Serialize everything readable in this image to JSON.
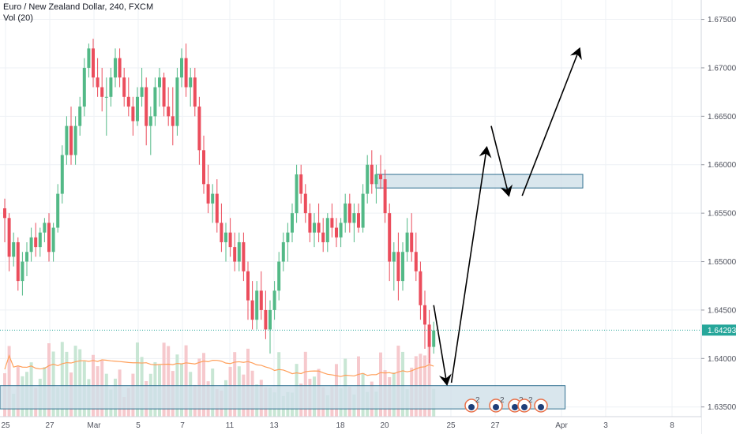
{
  "legend": {
    "symbol_line": "Euro / New Zealand Dollar, 240, FXCM",
    "volume_line": "Vol (20)"
  },
  "colors": {
    "up": "#53b987",
    "down": "#eb4d5c",
    "vol_up": "#c8e6d4",
    "vol_down": "#f6c9cd",
    "vol_ma": "#ff9f5a",
    "zone_fill": "#cfe0e8",
    "zone_stroke": "#2f6f8f",
    "price_line": "#26a69a",
    "grid": "#eef1f5",
    "arrow": "#000000"
  },
  "chart_data": {
    "type": "candlestick",
    "title": "Euro / New Zealand Dollar, 240, FXCM",
    "y_ticks": [
      "1.67500",
      "1.67000",
      "1.66500",
      "1.66000",
      "1.65500",
      "1.65000",
      "1.64500",
      "1.64000",
      "1.63500"
    ],
    "x_ticks": [
      "25",
      "27",
      "Mar",
      "5",
      "7",
      "11",
      "13",
      "18",
      "20",
      "25",
      "27",
      "Apr",
      "3",
      "8"
    ],
    "ylim": [
      1.634,
      1.677
    ],
    "last_price": "1.64293",
    "grid": true,
    "volume_indicator": "Vol (20)",
    "candles": [
      [
        1.6555,
        1.6565,
        1.652,
        1.6545
      ],
      [
        1.6545,
        1.655,
        1.649,
        1.6505
      ],
      [
        1.6505,
        1.653,
        1.6495,
        1.652
      ],
      [
        1.652,
        1.6525,
        1.647,
        1.648
      ],
      [
        1.648,
        1.651,
        1.6465,
        1.65
      ],
      [
        1.65,
        1.652,
        1.6485,
        1.651
      ],
      [
        1.651,
        1.6535,
        1.65,
        1.6525
      ],
      [
        1.6525,
        1.654,
        1.6505,
        1.6515
      ],
      [
        1.6515,
        1.6535,
        1.6505,
        1.653
      ],
      [
        1.653,
        1.6545,
        1.652,
        1.654
      ],
      [
        1.654,
        1.655,
        1.65,
        1.651
      ],
      [
        1.651,
        1.654,
        1.65,
        1.6535
      ],
      [
        1.6535,
        1.658,
        1.653,
        1.657
      ],
      [
        1.657,
        1.662,
        1.656,
        1.661
      ],
      [
        1.661,
        1.665,
        1.66,
        1.664
      ],
      [
        1.664,
        1.666,
        1.66,
        1.661
      ],
      [
        1.661,
        1.665,
        1.66,
        1.664
      ],
      [
        1.664,
        1.667,
        1.663,
        1.666
      ],
      [
        1.666,
        1.671,
        1.665,
        1.67
      ],
      [
        1.67,
        1.6725,
        1.669,
        1.672
      ],
      [
        1.672,
        1.673,
        1.668,
        1.669
      ],
      [
        1.669,
        1.671,
        1.667,
        1.668
      ],
      [
        1.668,
        1.67,
        1.6655,
        1.667
      ],
      [
        1.667,
        1.669,
        1.663,
        1.667
      ],
      [
        1.667,
        1.67,
        1.666,
        1.669
      ],
      [
        1.669,
        1.672,
        1.668,
        1.671
      ],
      [
        1.671,
        1.672,
        1.668,
        1.669
      ],
      [
        1.669,
        1.67,
        1.666,
        1.667
      ],
      [
        1.667,
        1.669,
        1.665,
        1.666
      ],
      [
        1.666,
        1.667,
        1.663,
        1.6645
      ],
      [
        1.6645,
        1.668,
        1.664,
        1.667
      ],
      [
        1.667,
        1.67,
        1.666,
        1.668
      ],
      [
        1.668,
        1.669,
        1.662,
        1.664
      ],
      [
        1.664,
        1.666,
        1.661,
        1.665
      ],
      [
        1.665,
        1.669,
        1.664,
        1.668
      ],
      [
        1.668,
        1.67,
        1.666,
        1.669
      ],
      [
        1.669,
        1.6695,
        1.665,
        1.666
      ],
      [
        1.666,
        1.668,
        1.664,
        1.665
      ],
      [
        1.665,
        1.668,
        1.662,
        1.664
      ],
      [
        1.664,
        1.67,
        1.663,
        1.669
      ],
      [
        1.669,
        1.672,
        1.668,
        1.671
      ],
      [
        1.671,
        1.6725,
        1.667,
        1.668
      ],
      [
        1.668,
        1.67,
        1.666,
        1.669
      ],
      [
        1.669,
        1.67,
        1.665,
        1.666
      ],
      [
        1.666,
        1.667,
        1.66,
        1.6615
      ],
      [
        1.6615,
        1.663,
        1.657,
        1.658
      ],
      [
        1.658,
        1.66,
        1.655,
        1.656
      ],
      [
        1.656,
        1.658,
        1.654,
        1.657
      ],
      [
        1.657,
        1.6585,
        1.653,
        1.654
      ],
      [
        1.654,
        1.656,
        1.651,
        1.652
      ],
      [
        1.652,
        1.654,
        1.65,
        1.653
      ],
      [
        1.653,
        1.6545,
        1.6505,
        1.6515
      ],
      [
        1.6515,
        1.653,
        1.649,
        1.65
      ],
      [
        1.65,
        1.653,
        1.649,
        1.652
      ],
      [
        1.652,
        1.653,
        1.648,
        1.649
      ],
      [
        1.649,
        1.65,
        1.644,
        1.646
      ],
      [
        1.646,
        1.648,
        1.643,
        1.644
      ],
      [
        1.644,
        1.648,
        1.643,
        1.647
      ],
      [
        1.647,
        1.649,
        1.644,
        1.645
      ],
      [
        1.645,
        1.647,
        1.642,
        1.643
      ],
      [
        1.643,
        1.646,
        1.6405,
        1.645
      ],
      [
        1.645,
        1.648,
        1.644,
        1.647
      ],
      [
        1.647,
        1.651,
        1.646,
        1.65
      ],
      [
        1.65,
        1.653,
        1.649,
        1.652
      ],
      [
        1.652,
        1.654,
        1.65,
        1.653
      ],
      [
        1.653,
        1.656,
        1.652,
        1.655
      ],
      [
        1.655,
        1.66,
        1.654,
        1.659
      ],
      [
        1.659,
        1.66,
        1.656,
        1.657
      ],
      [
        1.657,
        1.658,
        1.654,
        1.655
      ],
      [
        1.655,
        1.656,
        1.652,
        1.653
      ],
      [
        1.653,
        1.655,
        1.6515,
        1.654
      ],
      [
        1.654,
        1.656,
        1.652,
        1.653
      ],
      [
        1.653,
        1.6545,
        1.651,
        1.652
      ],
      [
        1.652,
        1.655,
        1.651,
        1.6545
      ],
      [
        1.6545,
        1.656,
        1.6525,
        1.6535
      ],
      [
        1.6535,
        1.6545,
        1.6515,
        1.6525
      ],
      [
        1.6525,
        1.6545,
        1.6515,
        1.654
      ],
      [
        1.654,
        1.657,
        1.653,
        1.656
      ],
      [
        1.656,
        1.657,
        1.653,
        1.654
      ],
      [
        1.654,
        1.656,
        1.652,
        1.655
      ],
      [
        1.655,
        1.656,
        1.653,
        1.6535
      ],
      [
        1.6535,
        1.658,
        1.653,
        1.657
      ],
      [
        1.657,
        1.661,
        1.656,
        1.66
      ],
      [
        1.66,
        1.6615,
        1.657,
        1.658
      ],
      [
        1.658,
        1.66,
        1.656,
        1.659
      ],
      [
        1.659,
        1.661,
        1.6575,
        1.6585
      ],
      [
        1.6585,
        1.6595,
        1.654,
        1.655
      ],
      [
        1.655,
        1.656,
        1.648,
        1.65
      ],
      [
        1.65,
        1.652,
        1.647,
        1.651
      ],
      [
        1.651,
        1.653,
        1.646,
        1.648
      ],
      [
        1.648,
        1.652,
        1.647,
        1.651
      ],
      [
        1.651,
        1.6545,
        1.65,
        1.653
      ],
      [
        1.653,
        1.655,
        1.65,
        1.651
      ],
      [
        1.651,
        1.653,
        1.648,
        1.649
      ],
      [
        1.649,
        1.65,
        1.644,
        1.6455
      ],
      [
        1.6455,
        1.647,
        1.641,
        1.6435
      ],
      [
        1.6435,
        1.645,
        1.6395,
        1.6412
      ],
      [
        1.6412,
        1.6438,
        1.6405,
        1.6429
      ]
    ]
  },
  "zones": [
    {
      "name": "resistance-zone",
      "top": 1.659,
      "bottom": 1.6576,
      "from_index": 85,
      "to_index": 130
    },
    {
      "name": "support-zone",
      "top": 1.6372,
      "bottom": 1.6348,
      "from_index": 0,
      "to_index": 126
    }
  ],
  "arrows": [
    {
      "from": [
        97,
        1.6455
      ],
      "to": [
        100,
        1.6373
      ]
    },
    {
      "from": [
        101,
        1.6375
      ],
      "to": [
        109,
        1.6618
      ]
    },
    {
      "from": [
        110,
        1.664
      ],
      "to": [
        114,
        1.6568
      ]
    },
    {
      "from": [
        117,
        1.6568
      ],
      "to": [
        130,
        1.672
      ]
    }
  ],
  "events": [
    "2",
    "2",
    "2",
    "2"
  ]
}
